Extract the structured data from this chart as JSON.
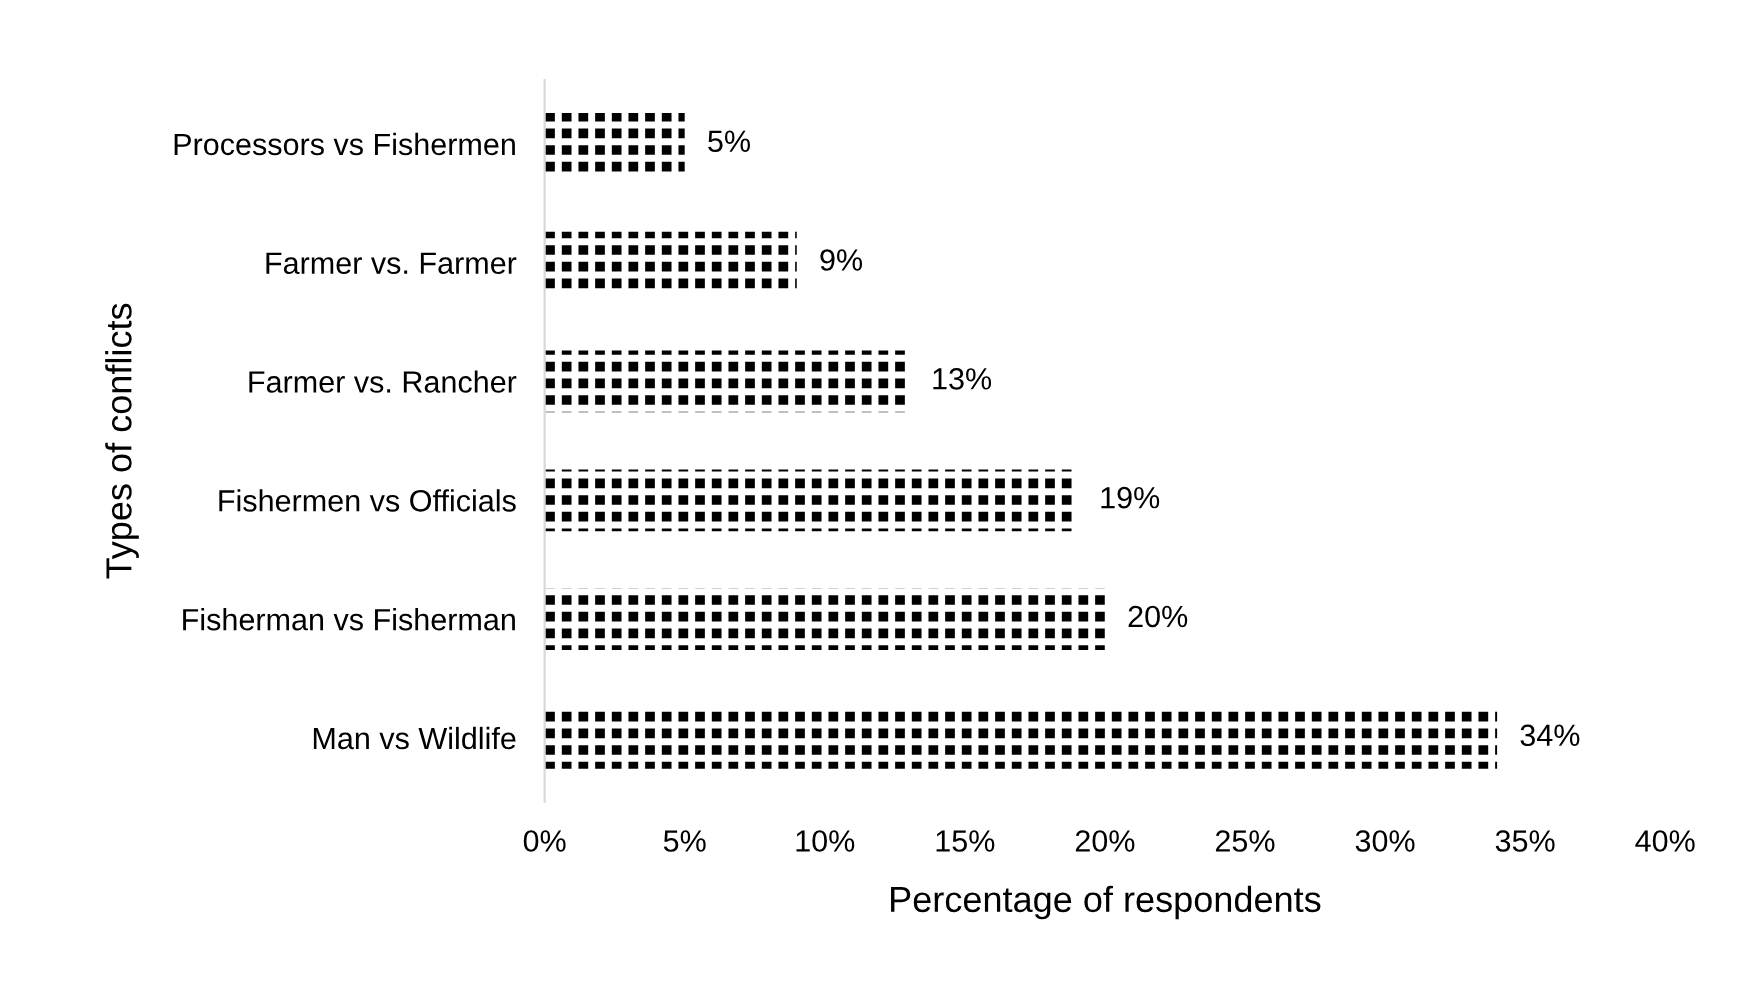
{
  "chart_data": {
    "type": "bar",
    "orientation": "horizontal",
    "xlabel": "Percentage of respondents",
    "ylabel": "Types of conflicts",
    "categories": [
      "Processors vs Fishermen",
      "Farmer vs. Farmer",
      "Farmer vs. Rancher",
      "Fishermen vs Officials",
      "Fisherman vs Fisherman",
      "Man vs Wildlife"
    ],
    "values": [
      5,
      9,
      13,
      19,
      20,
      34
    ],
    "value_labels": [
      "5%",
      "9%",
      "13%",
      "19%",
      "20%",
      "34%"
    ],
    "color": "#000000",
    "xlim": [
      0,
      40
    ],
    "xticks": [
      {
        "value": 0,
        "label": "0%"
      },
      {
        "value": 5,
        "label": "5%"
      },
      {
        "value": 10,
        "label": "10%"
      },
      {
        "value": 15,
        "label": "15%"
      },
      {
        "value": 20,
        "label": "20%"
      },
      {
        "value": 25,
        "label": "25%"
      },
      {
        "value": 30,
        "label": "30%"
      },
      {
        "value": 35,
        "label": "35%"
      },
      {
        "value": 40,
        "label": "40%"
      }
    ],
    "grid": false
  }
}
